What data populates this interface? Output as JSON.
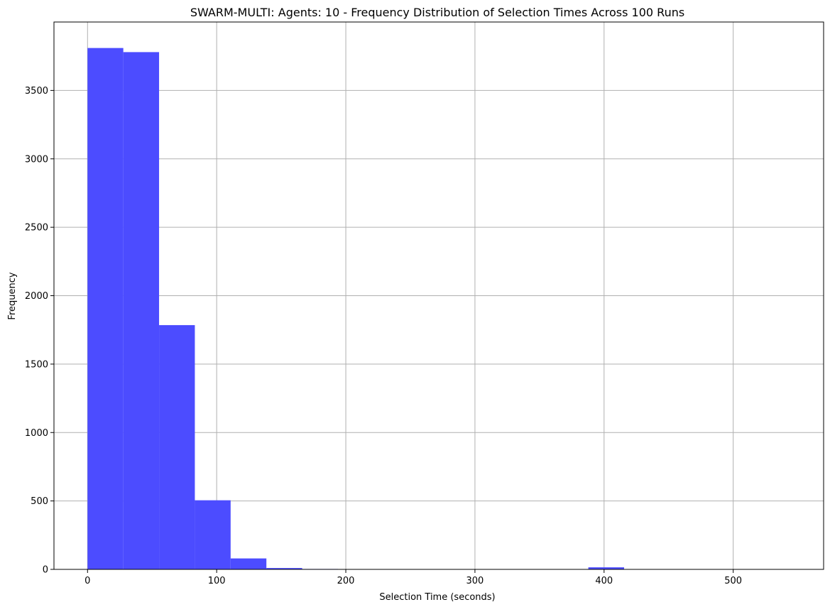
{
  "chart_data": {
    "type": "bar",
    "subtype": "histogram",
    "title": "SWARM-MULTI: Agents: 10 - Frequency Distribution of Selection Times Across 100 Runs",
    "xlabel": "Selection Time (seconds)",
    "ylabel": "Frequency",
    "xlim": [
      -26,
      570
    ],
    "ylim": [
      0,
      4000
    ],
    "xticks": [
      0,
      100,
      200,
      300,
      400,
      500
    ],
    "yticks": [
      0,
      500,
      1000,
      1500,
      2000,
      2500,
      3000,
      3500
    ],
    "grid": true,
    "bar_color": "#4c4cff",
    "bins": [
      {
        "x0": 0.0,
        "x1": 27.7,
        "count": 3810
      },
      {
        "x0": 27.7,
        "x1": 55.4,
        "count": 3780
      },
      {
        "x0": 55.4,
        "x1": 83.1,
        "count": 1785
      },
      {
        "x0": 83.1,
        "x1": 110.8,
        "count": 505
      },
      {
        "x0": 110.8,
        "x1": 138.5,
        "count": 80
      },
      {
        "x0": 138.5,
        "x1": 166.2,
        "count": 10
      },
      {
        "x0": 166.2,
        "x1": 193.9,
        "count": 3
      },
      {
        "x0": 360.1,
        "x1": 387.8,
        "count": 2
      },
      {
        "x0": 387.8,
        "x1": 415.5,
        "count": 15
      },
      {
        "x0": 443.2,
        "x1": 470.9,
        "count": 2
      },
      {
        "x0": 470.9,
        "x1": 498.6,
        "count": 2
      },
      {
        "x0": 498.6,
        "x1": 526.3,
        "count": 2
      },
      {
        "x0": 526.3,
        "x1": 554.0,
        "count": 2
      }
    ]
  }
}
